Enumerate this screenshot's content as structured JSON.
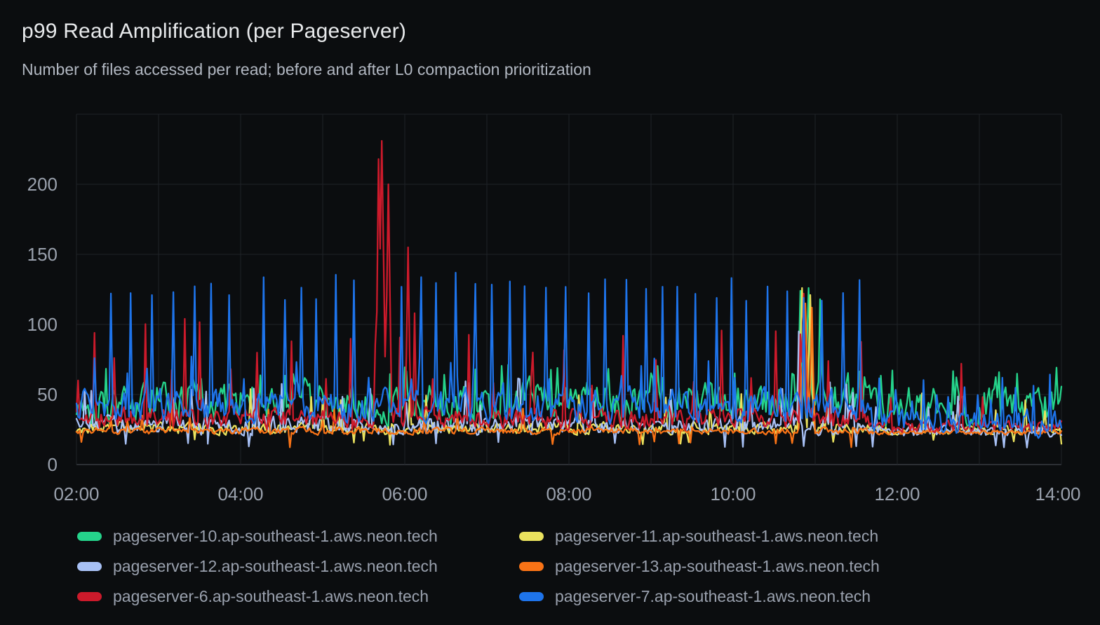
{
  "panel": {
    "title": "p99 Read Amplification (per Pageserver)",
    "subtitle": "Number of files accessed per read; before and after L0 compaction prioritization"
  },
  "colors": {
    "background": "#0b0d0f",
    "grid": "#1f2227",
    "axis_line": "#383b41",
    "title_text": "#e8eaec",
    "subtitle_text": "#b2b8c2",
    "tick_text": "#9aa1ad",
    "legend_text": "#9aa1ae"
  },
  "chart_data": {
    "type": "line",
    "title": "p99 Read Amplification (per Pageserver)",
    "subtitle": "Number of files accessed per read; before and after L0 compaction prioritization",
    "xlabel": "",
    "ylabel": "",
    "grid": "on",
    "legend_position": "bottom",
    "x_range_hours": [
      2,
      14
    ],
    "ylim": [
      0,
      250
    ],
    "x_ticks": [
      {
        "hour": 2,
        "label": "02:00"
      },
      {
        "hour": 4,
        "label": "04:00"
      },
      {
        "hour": 6,
        "label": "06:00"
      },
      {
        "hour": 8,
        "label": "08:00"
      },
      {
        "hour": 10,
        "label": "10:00"
      },
      {
        "hour": 12,
        "label": "12:00"
      },
      {
        "hour": 14,
        "label": "14:00"
      }
    ],
    "y_ticks": [
      {
        "value": 0,
        "label": "0"
      },
      {
        "value": 50,
        "label": "50"
      },
      {
        "value": 100,
        "label": "100"
      },
      {
        "value": 150,
        "label": "150"
      },
      {
        "value": 200,
        "label": "200"
      }
    ],
    "grid_values": [
      0,
      50,
      100,
      150,
      200,
      250
    ],
    "transition_hour": 11.64,
    "transition_note": "periodic tall blue spikes stop after ~11:40 (L0 compaction prioritization enabled); all series settle to lower amplitude",
    "max_observed_value": 231,
    "series": [
      {
        "name": "pageserver-10.ap-southeast-1.aws.neon.tech",
        "color": "#25d48b",
        "floor": 22,
        "before": {
          "base": 45,
          "amp": 21,
          "random_spikes": {
            "prob": 0.06,
            "height": [
              60,
              73
            ]
          }
        },
        "after": {
          "base": 42,
          "amp": 20,
          "random_spikes": {
            "prob": 0.06,
            "height": [
              55,
              70
            ]
          }
        },
        "events": [
          [
            10.82,
            124,
            0.05
          ],
          [
            10.92,
            126,
            0.06
          ],
          [
            11.06,
            118,
            0.04
          ]
        ]
      },
      {
        "name": "pageserver-11.ap-southeast-1.aws.neon.tech",
        "color": "#eae25e",
        "floor": 13,
        "before": {
          "base": 26,
          "amp": 6,
          "random_spikes": {
            "prob": 0.03,
            "height": [
              38,
              54
            ]
          },
          "dips": {
            "prob": 0.02,
            "depth": [
              14,
              18
            ]
          }
        },
        "after": {
          "base": 25,
          "amp": 5,
          "random_spikes": {
            "prob": 0.05,
            "height": [
              35,
              52
            ]
          },
          "dips": {
            "prob": 0.03,
            "depth": [
              14,
              18
            ]
          }
        },
        "events": [
          [
            10.84,
            126,
            0.06
          ],
          [
            10.94,
            121,
            0.05
          ]
        ]
      },
      {
        "name": "pageserver-12.ap-southeast-1.aws.neon.tech",
        "color": "#a8c1f5",
        "floor": 11,
        "before": {
          "base": 28,
          "amp": 9,
          "random_spikes": {
            "prob": 0.05,
            "height": [
              42,
              62
            ]
          },
          "dips": {
            "prob": 0.03,
            "depth": [
              12,
              16
            ]
          }
        },
        "after": {
          "base": 24,
          "amp": 6,
          "random_spikes": {
            "prob": 0.04,
            "height": [
              35,
              50
            ]
          },
          "dips": {
            "prob": 0.04,
            "depth": [
              12,
              15
            ]
          }
        },
        "events": [
          [
            10.8,
            95,
            0.03
          ]
        ]
      },
      {
        "name": "pageserver-13.ap-southeast-1.aws.neon.tech",
        "color": "#f97316",
        "floor": 11,
        "before": {
          "base": 24,
          "amp": 3.5,
          "random_spikes": {
            "prob": 0.02,
            "height": [
              30,
              40
            ]
          },
          "dips": {
            "prob": 0.02,
            "depth": [
              12,
              17
            ]
          }
        },
        "after": {
          "base": 23,
          "amp": 2.5,
          "dips": {
            "prob": 0.02,
            "depth": [
              14,
              18
            ]
          }
        },
        "events": [
          [
            10.82,
            78,
            0.03
          ],
          [
            10.88,
            115,
            0.06
          ],
          [
            10.96,
            112,
            0.04
          ]
        ]
      },
      {
        "name": "pageserver-6.ap-southeast-1.aws.neon.tech",
        "color": "#cc1a2b",
        "floor": 18,
        "before": {
          "base": 33,
          "amp": 11,
          "spikes": {
            "interval_hours": 0.36,
            "height": [
              55,
              104
            ]
          }
        },
        "after": {
          "base": 27,
          "amp": 6,
          "spikes": {
            "interval_hours": 1.1,
            "height": [
              40,
              70
            ]
          }
        },
        "events": [
          [
            2.22,
            94,
            0.03
          ],
          [
            3.32,
            104,
            0.03
          ],
          [
            4.62,
            88,
            0.03
          ],
          [
            5.68,
            218,
            0.04
          ],
          [
            5.72,
            231,
            0.06
          ],
          [
            5.8,
            200,
            0.05
          ],
          [
            6.04,
            155,
            0.04
          ],
          [
            6.12,
            108,
            0.03
          ],
          [
            7.56,
            80,
            0.03
          ],
          [
            10.86,
            122,
            0.05
          ],
          [
            12.78,
            72,
            0.03
          ]
        ]
      },
      {
        "name": "pageserver-7.ap-southeast-1.aws.neon.tech",
        "color": "#1e74eb",
        "floor": 18,
        "before": {
          "base": 42,
          "amp": 17,
          "spikes": {
            "interval_hours": 0.21,
            "height": [
              116,
              137
            ]
          },
          "random_spikes": {
            "prob": 0.05,
            "height": [
              55,
              78
            ]
          }
        },
        "after": {
          "base": 30,
          "amp": 13,
          "spikes": {
            "interval_hours": 0.17,
            "height": [
              44,
              66
            ]
          }
        },
        "events": []
      }
    ]
  }
}
